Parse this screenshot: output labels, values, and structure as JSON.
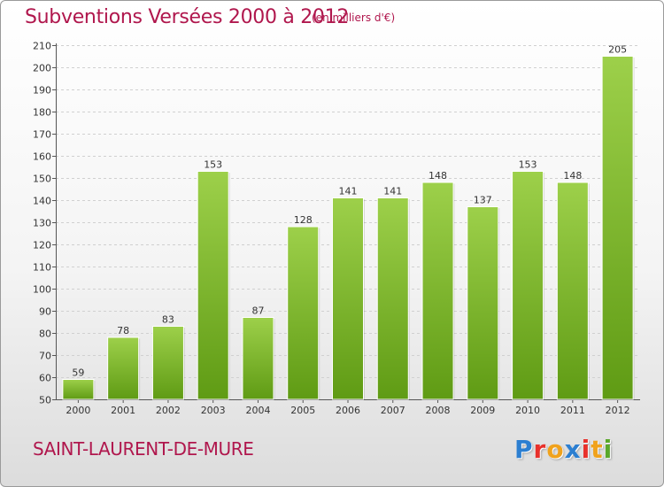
{
  "header": {
    "title": "Subventions Versées 2000 à 2012",
    "subtitle": "(en milliers d'€)"
  },
  "footer": {
    "town": "SAINT-LAURENT-DE-MURE",
    "logo_letters": [
      "P",
      "r",
      "o",
      "x",
      "i",
      "t",
      "i"
    ]
  },
  "colors": {
    "title": "#b0174d",
    "bar_light": "#9dd04a",
    "bar_dark": "#5f9b14",
    "grid": "#d0d0d0",
    "logo": [
      "#2c7fd1",
      "#e8312b",
      "#f0a21c",
      "#2c7fd1",
      "#e8312b",
      "#f0a21c",
      "#5aa82a"
    ]
  },
  "chart_data": {
    "type": "bar",
    "title": "Subventions Versées 2000 à 2012",
    "subtitle": "(en milliers d'€)",
    "categories": [
      "2000",
      "2001",
      "2002",
      "2003",
      "2004",
      "2005",
      "2006",
      "2007",
      "2008",
      "2009",
      "2010",
      "2011",
      "2012"
    ],
    "values": [
      59,
      78,
      83,
      153,
      87,
      128,
      141,
      141,
      148,
      137,
      153,
      148,
      205
    ],
    "ylim": [
      50,
      210
    ],
    "yticks": [
      50,
      60,
      70,
      80,
      90,
      100,
      110,
      120,
      130,
      140,
      150,
      160,
      170,
      180,
      190,
      200,
      210
    ],
    "grid": true,
    "data_labels": true,
    "xlabel": "",
    "ylabel": ""
  }
}
